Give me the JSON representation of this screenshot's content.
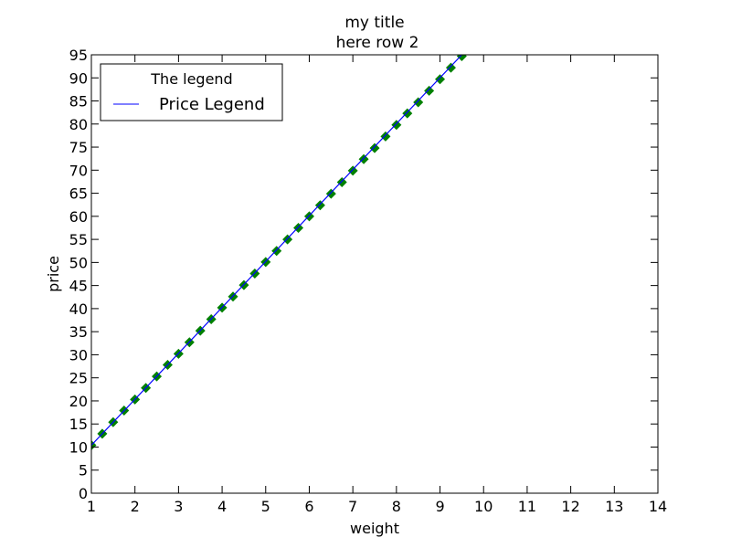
{
  "chart_data": {
    "type": "line",
    "title": "my title",
    "subtitle": "here row 2",
    "xlabel": "weight",
    "ylabel": "price",
    "xlim": [
      1,
      14
    ],
    "ylim": [
      0,
      95
    ],
    "xticks": [
      1,
      2,
      3,
      4,
      5,
      6,
      7,
      8,
      9,
      10,
      11,
      12,
      13,
      14
    ],
    "yticks": [
      0,
      5,
      10,
      15,
      20,
      25,
      30,
      35,
      40,
      45,
      50,
      55,
      60,
      65,
      70,
      75,
      80,
      85,
      90,
      95
    ],
    "grid": false,
    "legend": {
      "title": "The legend",
      "placement": "upper-left",
      "entries": [
        "Price Legend"
      ]
    },
    "series": [
      {
        "name": "Price Legend",
        "style": "line",
        "color": "#0000ff",
        "x": [
          1.0,
          9.5
        ],
        "y": [
          10.4,
          95.0
        ]
      },
      {
        "style": "markers",
        "marker": "diamond",
        "color": "#008000",
        "x": [
          1.0,
          1.25,
          1.5,
          1.75,
          2.0,
          2.25,
          2.5,
          2.75,
          3.0,
          3.25,
          3.5,
          3.75,
          4.0,
          4.25,
          4.5,
          4.75,
          5.0,
          5.25,
          5.5,
          5.75,
          6.0,
          6.25,
          6.5,
          6.75,
          7.0,
          7.25,
          7.5,
          7.75,
          8.0,
          8.25,
          8.5,
          8.75,
          9.0,
          9.25,
          9.5
        ],
        "y": [
          10.4,
          12.9,
          15.4,
          17.9,
          20.3,
          22.8,
          25.3,
          27.8,
          30.2,
          32.7,
          35.2,
          37.7,
          40.2,
          42.6,
          45.1,
          47.6,
          50.1,
          52.5,
          55.0,
          57.5,
          60.0,
          62.4,
          64.9,
          67.4,
          69.9,
          72.4,
          74.8,
          77.3,
          79.8,
          82.3,
          84.7,
          87.2,
          89.7,
          92.2,
          94.7
        ]
      }
    ]
  }
}
